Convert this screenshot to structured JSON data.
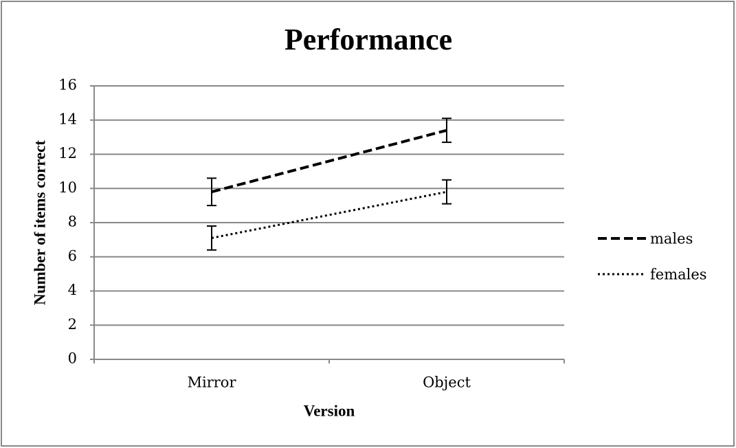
{
  "chart_data": {
    "type": "line",
    "title": "Performance",
    "x_label": "Version",
    "y_label": "Number of items correct",
    "categories": [
      "Mirror",
      "Object"
    ],
    "series": [
      {
        "name": "males",
        "color": "#000000",
        "style": "dashed",
        "values": [
          9.8,
          13.4
        ],
        "errors": [
          0.8,
          0.7
        ]
      },
      {
        "name": "females",
        "color": "#000000",
        "style": "dotted",
        "values": [
          7.1,
          9.8
        ],
        "errors": [
          0.7,
          0.7
        ]
      }
    ],
    "ylim": [
      0,
      16
    ],
    "yticks": [
      0,
      2,
      4,
      6,
      8,
      10,
      12,
      14,
      16
    ],
    "grid": true,
    "legend": "right"
  }
}
